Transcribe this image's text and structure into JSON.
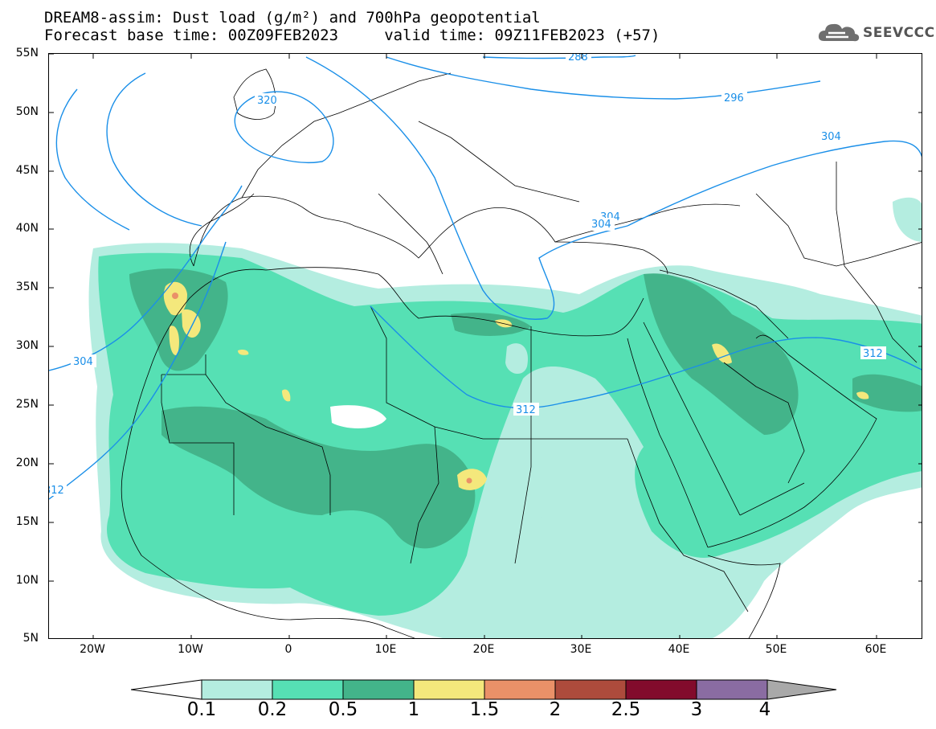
{
  "title_line1": "DREAM8-assim: Dust load (g/m²) and 700hPa geopotential",
  "title_line2": "Forecast base time: 00Z09FEB2023     valid time: 09Z11FEB2023 (+57)",
  "logo_text": "SEEVCCC",
  "lat_labels": [
    "55N",
    "50N",
    "45N",
    "40N",
    "35N",
    "30N",
    "25N",
    "20N",
    "15N",
    "10N",
    "5N"
  ],
  "lon_labels": [
    "20W",
    "10W",
    "0",
    "10E",
    "20E",
    "30E",
    "40E",
    "50E",
    "60E"
  ],
  "contour_labels": {
    "c288": "288",
    "c296": "296",
    "c304a": "304",
    "c304b": "304",
    "c304c": "304",
    "c304d": "304",
    "c312a": "312",
    "c312b": "312",
    "c312c": "312",
    "c320": "320"
  },
  "colorbar": {
    "labels": [
      "0.1",
      "0.2",
      "0.5",
      "1",
      "1.5",
      "2",
      "2.5",
      "3",
      "4"
    ],
    "colors": [
      "#ffffff",
      "#b4ede0",
      "#56e0b4",
      "#43b48a",
      "#f4e87c",
      "#ea9168",
      "#ad4b3c",
      "#820b2c",
      "#8a6ca2",
      "#a9a9a9"
    ]
  },
  "map_colors": {
    "coast": "#000000",
    "contour": "#1a8fe8"
  }
}
